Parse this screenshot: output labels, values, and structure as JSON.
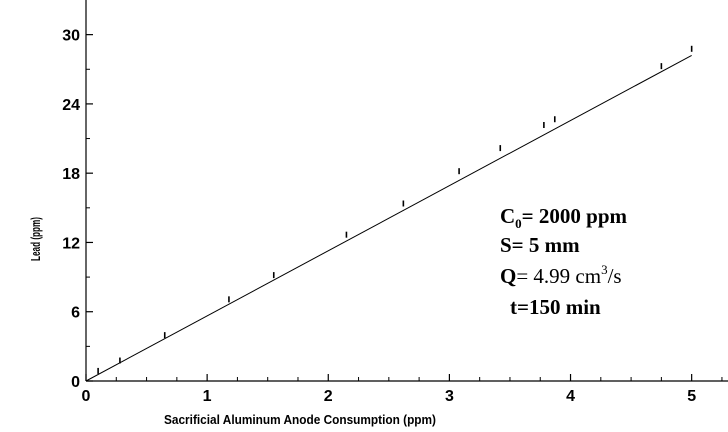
{
  "chart_data": {
    "type": "scatter",
    "xlabel": "Sacrificial Aluminum Anode Consumption (ppm)",
    "ylabel": "Lead (ppm)",
    "xlim": [
      0,
      5.3
    ],
    "ylim": [
      0,
      33
    ],
    "xticks": [
      "0",
      "1",
      "2",
      "3",
      "4",
      "5"
    ],
    "yticks": [
      "0",
      "6",
      "12",
      "18",
      "24",
      "30"
    ],
    "grid": false,
    "series": [
      {
        "points": [
          [
            0.1,
            0.7
          ],
          [
            0.28,
            1.6
          ],
          [
            0.65,
            3.8
          ],
          [
            1.18,
            6.9
          ],
          [
            1.55,
            9.0
          ],
          [
            2.15,
            12.5
          ],
          [
            2.62,
            15.2
          ],
          [
            3.08,
            18.0
          ],
          [
            3.42,
            20.0
          ],
          [
            3.78,
            22.0
          ],
          [
            3.87,
            22.5
          ],
          [
            4.75,
            27.1
          ],
          [
            5.0,
            28.6
          ]
        ],
        "fit_line": [
          [
            0,
            0
          ],
          [
            5.0,
            28.2
          ]
        ]
      }
    ],
    "annotations": {
      "c0_symbol": "C",
      "c0_sub": "0",
      "c0_value": "= 2000 ppm",
      "s_line": "S= 5 mm",
      "q_symbol": "Q",
      "q_value": "= 4.99 cm",
      "q_sup": "3",
      "q_unit": "/s",
      "t_line": "t=150 min"
    }
  }
}
